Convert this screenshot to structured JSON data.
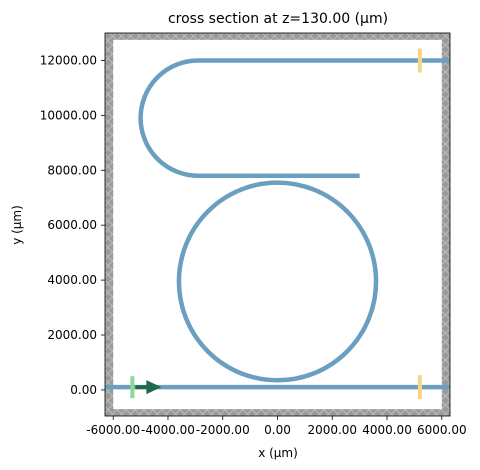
{
  "chart_data": {
    "type": "cross-section",
    "title": "cross section at z=130.00 (μm)",
    "xlabel": "x (μm)",
    "ylabel": "y (μm)",
    "xlim": [
      -6300,
      6300
    ],
    "ylim": [
      -950,
      13000
    ],
    "xticks": [
      -6000,
      -4000,
      -2000,
      0,
      2000,
      4000,
      6000
    ],
    "xtick_labels": [
      "-6000.00",
      "-4000.00",
      "-2000.00",
      "0.00",
      "2000.00",
      "4000.00",
      "6000.00"
    ],
    "yticks": [
      0,
      2000,
      4000,
      6000,
      8000,
      10000,
      12000
    ],
    "ytick_labels": [
      "0.00",
      "2000.00",
      "4000.00",
      "6000.00",
      "8000.00",
      "10000.00",
      "12000.00"
    ],
    "pml_region": {
      "x_inner": [
        -6000,
        6000
      ],
      "y_inner": [
        -700,
        12750
      ]
    },
    "structures": {
      "color": "#6a9fbf",
      "bus_waveguide_y": 100,
      "ring": {
        "cx": 0,
        "cy": 3950,
        "r": 3600
      },
      "top_waveguide": {
        "y_top": 12000,
        "y_bottom": 7800,
        "x_bend": -2900,
        "x_end_bottom": 3000,
        "bend_radius": 2100
      }
    },
    "source": {
      "x": -5300,
      "y": 100,
      "color": "#90d890",
      "arrow_color": "#1e6b4a",
      "direction": "+x"
    },
    "monitors": [
      {
        "x": 5200,
        "y": 100,
        "color": "#f6d48a"
      },
      {
        "x": 5200,
        "y": 12000,
        "color": "#f6d48a"
      }
    ]
  }
}
